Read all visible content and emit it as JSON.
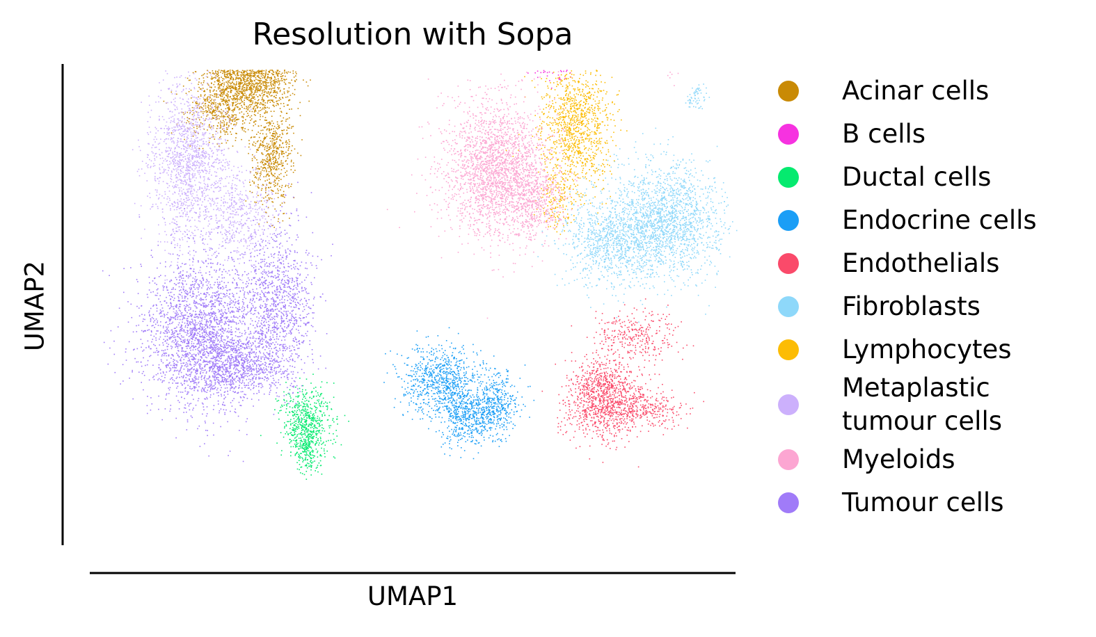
{
  "chart_data": {
    "type": "scatter",
    "title": "Resolution with Sopa",
    "xlabel": "UMAP1",
    "ylabel": "UMAP2",
    "grid": false,
    "legend_position": "right",
    "series": [
      {
        "name": "Acinar cells",
        "color": "#c98a05",
        "clusters": [
          {
            "x": 5.3,
            "y": 15.6,
            "sx": 0.65,
            "sy": 0.55,
            "n": 1500
          },
          {
            "x": 6.0,
            "y": 13.1,
            "sx": 0.32,
            "sy": 0.85,
            "n": 600
          },
          {
            "x": 4.4,
            "y": 14.5,
            "sx": 0.55,
            "sy": 0.5,
            "n": 500
          }
        ]
      },
      {
        "name": "B cells",
        "color": "#f632e0",
        "clusters": [
          {
            "x": 15.6,
            "y": 16.9,
            "sx": 0.35,
            "sy": 0.45,
            "n": 220
          },
          {
            "x": 16.4,
            "y": 18.2,
            "sx": 0.25,
            "sy": 0.4,
            "n": 160
          },
          {
            "x": 15.0,
            "y": 16.1,
            "sx": 0.35,
            "sy": 0.3,
            "n": 120
          }
        ]
      },
      {
        "name": "Ductal cells",
        "color": "#05ea6f",
        "clusters": [
          {
            "x": 7.1,
            "y": 4.5,
            "sx": 0.4,
            "sy": 0.55,
            "n": 600
          },
          {
            "x": 7.1,
            "y": 3.6,
            "sx": 0.18,
            "sy": 0.35,
            "n": 150
          }
        ]
      },
      {
        "name": "Endocrine cells",
        "color": "#1b9ef6",
        "clusters": [
          {
            "x": 11.4,
            "y": 5.8,
            "sx": 0.65,
            "sy": 0.55,
            "n": 800
          },
          {
            "x": 12.3,
            "y": 4.7,
            "sx": 0.45,
            "sy": 0.45,
            "n": 500
          },
          {
            "x": 13.2,
            "y": 5.1,
            "sx": 0.35,
            "sy": 0.5,
            "n": 350
          }
        ]
      },
      {
        "name": "Endothelials",
        "color": "#fa4a6a",
        "clusters": [
          {
            "x": 16.6,
            "y": 5.3,
            "sx": 0.6,
            "sy": 0.6,
            "n": 1100
          },
          {
            "x": 17.6,
            "y": 7.3,
            "sx": 0.7,
            "sy": 0.4,
            "n": 300
          },
          {
            "x": 18.0,
            "y": 4.9,
            "sx": 0.6,
            "sy": 0.28,
            "n": 250
          },
          {
            "x": 19.6,
            "y": 16.7,
            "sx": 0.08,
            "sy": 0.3,
            "n": 40
          }
        ]
      },
      {
        "name": "Fibroblasts",
        "color": "#8ed8fa",
        "clusters": [
          {
            "x": 18.6,
            "y": 11.0,
            "sx": 0.85,
            "sy": 0.9,
            "n": 1700
          },
          {
            "x": 16.8,
            "y": 10.3,
            "sx": 0.75,
            "sy": 0.7,
            "n": 900
          },
          {
            "x": 19.6,
            "y": 14.9,
            "sx": 0.15,
            "sy": 0.2,
            "n": 60
          }
        ]
      },
      {
        "name": "Lymphocytes",
        "color": "#fcbc04",
        "clusters": [
          {
            "x": 15.7,
            "y": 14.0,
            "sx": 0.55,
            "sy": 1.05,
            "n": 1100
          },
          {
            "x": 15.1,
            "y": 11.7,
            "sx": 0.3,
            "sy": 0.5,
            "n": 150
          }
        ]
      },
      {
        "name": "Metaplastic\ntumour cells",
        "color": "#ccb0fc",
        "clusters": [
          {
            "x": 3.3,
            "y": 12.9,
            "sx": 0.6,
            "sy": 1.3,
            "n": 1400
          },
          {
            "x": 5.0,
            "y": 11.1,
            "sx": 0.55,
            "sy": 0.75,
            "n": 500
          }
        ]
      },
      {
        "name": "Myeloids",
        "color": "#fca6d2",
        "clusters": [
          {
            "x": 13.2,
            "y": 12.6,
            "sx": 0.85,
            "sy": 1.1,
            "n": 2300
          },
          {
            "x": 14.4,
            "y": 11.6,
            "sx": 0.5,
            "sy": 0.6,
            "n": 400
          },
          {
            "x": 18.8,
            "y": 16.3,
            "sx": 0.1,
            "sy": 0.35,
            "n": 50
          }
        ]
      },
      {
        "name": "Tumour cells",
        "color": "#a07bf8",
        "clusters": [
          {
            "x": 3.8,
            "y": 7.4,
            "sx": 0.95,
            "sy": 1.2,
            "n": 2400
          },
          {
            "x": 6.2,
            "y": 8.4,
            "sx": 0.55,
            "sy": 1.2,
            "n": 1000
          },
          {
            "x": 5.0,
            "y": 6.3,
            "sx": 0.85,
            "sy": 0.45,
            "n": 700
          }
        ]
      }
    ]
  }
}
